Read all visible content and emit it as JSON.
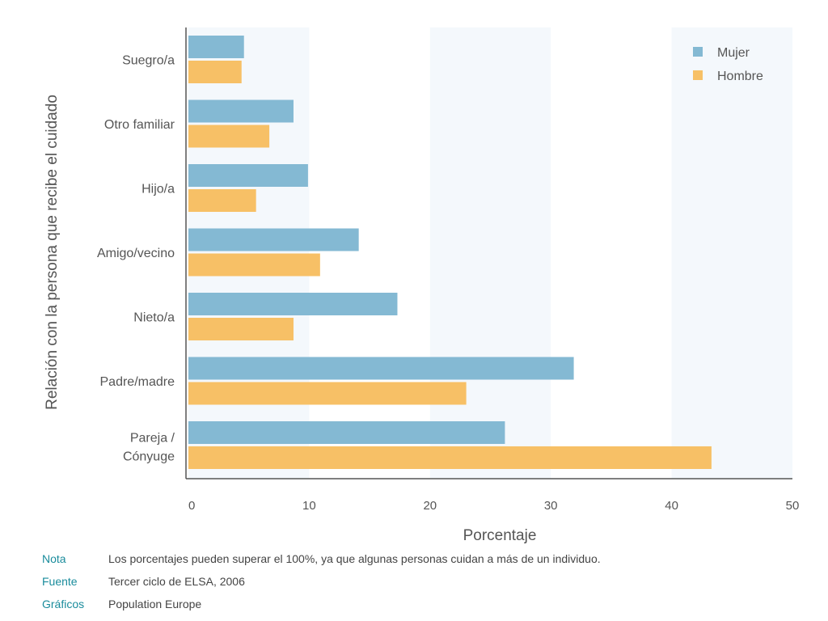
{
  "chart_data": {
    "type": "bar",
    "orientation": "horizontal",
    "categories": [
      "Suegro/a",
      "Otro familiar",
      "Hijo/a",
      "Amigo/vecino",
      "Nieto/a",
      "Padre/madre",
      "Pareja / Cónyuge"
    ],
    "series": [
      {
        "name": "Mujer",
        "color": "#84b9d3",
        "values": [
          4.6,
          8.7,
          9.9,
          14.1,
          17.3,
          31.9,
          26.2
        ]
      },
      {
        "name": "Hombre",
        "color": "#f7c066",
        "values": [
          4.4,
          6.7,
          5.6,
          10.9,
          8.7,
          23.0,
          43.3
        ]
      }
    ],
    "xlabel": "Porcentaje",
    "ylabel": "Relación con la persona que recibe el cuidado",
    "xlim": [
      0,
      50
    ],
    "xticks": [
      0,
      10,
      20,
      30,
      40,
      50
    ],
    "legend_position": "top-right"
  },
  "notes": [
    {
      "key": "Nota",
      "text": "Los porcentajes pueden superar el 100%, ya que algunas personas cuidan a más de un individuo."
    },
    {
      "key": "Fuente",
      "text": "Tercer ciclo de ELSA, 2006"
    },
    {
      "key": "Gráficos",
      "text": "Population Europe"
    }
  ]
}
